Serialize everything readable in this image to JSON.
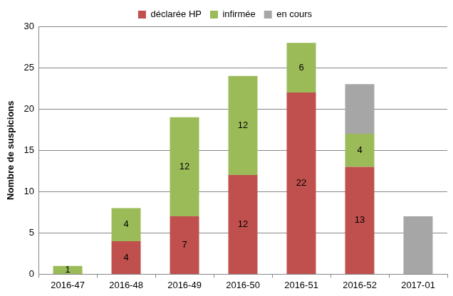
{
  "chart_data": {
    "type": "bar",
    "stacked": true,
    "y_label": "Nombre de suspicions",
    "categories": [
      "2016-47",
      "2016-48",
      "2016-49",
      "2016-50",
      "2016-51",
      "2016-52",
      "2017-01"
    ],
    "series": [
      {
        "name": "déclarée HP",
        "color": "#c0504d",
        "values": [
          null,
          4,
          7,
          12,
          22,
          13,
          null
        ],
        "data_labels": true
      },
      {
        "name": "infirmée",
        "color": "#9bbb59",
        "values": [
          1,
          4,
          12,
          12,
          6,
          4,
          null
        ],
        "data_labels": true
      },
      {
        "name": "en cours",
        "color": "#a6a6a6",
        "values": [
          null,
          null,
          null,
          null,
          null,
          6,
          7
        ],
        "data_labels": false
      }
    ],
    "ylim": [
      0,
      30
    ],
    "yticks": [
      0,
      5,
      10,
      15,
      20,
      25,
      30
    ],
    "grid": true,
    "legend": "top",
    "data_labels": true
  }
}
